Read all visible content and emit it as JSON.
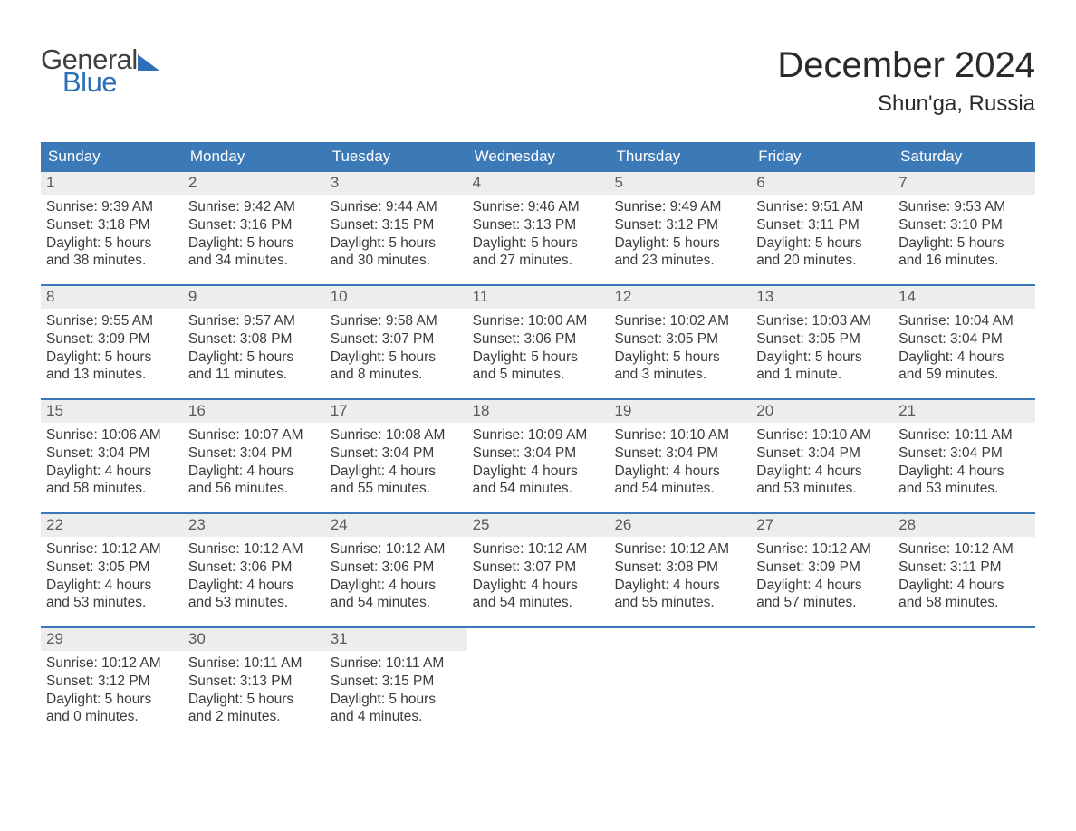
{
  "logo": {
    "word1": "General",
    "word2": "Blue"
  },
  "title": {
    "month_year": "December 2024",
    "location": "Shun'ga, Russia"
  },
  "colors": {
    "header_bg": "#3b79b7",
    "header_text": "#ffffff",
    "daynum_bg": "#ededed",
    "daynum_text": "#5a5a5a",
    "body_text": "#3b3b3b",
    "logo_gray": "#404040",
    "logo_blue": "#2d6fb8",
    "week_border": "#3b79b7",
    "page_bg": "#ffffff"
  },
  "typography": {
    "month_year_fontsize": 40,
    "location_fontsize": 24,
    "day_header_fontsize": 17,
    "day_num_fontsize": 17,
    "body_fontsize": 15.5,
    "logo_fontsize": 31
  },
  "day_headers": [
    "Sunday",
    "Monday",
    "Tuesday",
    "Wednesday",
    "Thursday",
    "Friday",
    "Saturday"
  ],
  "labels": {
    "sunrise": "Sunrise: ",
    "sunset": "Sunset: ",
    "daylight": "Daylight: "
  },
  "weeks": [
    [
      {
        "day": "1",
        "sunrise": "9:39 AM",
        "sunset": "3:18 PM",
        "daylight": "5 hours and 38 minutes."
      },
      {
        "day": "2",
        "sunrise": "9:42 AM",
        "sunset": "3:16 PM",
        "daylight": "5 hours and 34 minutes."
      },
      {
        "day": "3",
        "sunrise": "9:44 AM",
        "sunset": "3:15 PM",
        "daylight": "5 hours and 30 minutes."
      },
      {
        "day": "4",
        "sunrise": "9:46 AM",
        "sunset": "3:13 PM",
        "daylight": "5 hours and 27 minutes."
      },
      {
        "day": "5",
        "sunrise": "9:49 AM",
        "sunset": "3:12 PM",
        "daylight": "5 hours and 23 minutes."
      },
      {
        "day": "6",
        "sunrise": "9:51 AM",
        "sunset": "3:11 PM",
        "daylight": "5 hours and 20 minutes."
      },
      {
        "day": "7",
        "sunrise": "9:53 AM",
        "sunset": "3:10 PM",
        "daylight": "5 hours and 16 minutes."
      }
    ],
    [
      {
        "day": "8",
        "sunrise": "9:55 AM",
        "sunset": "3:09 PM",
        "daylight": "5 hours and 13 minutes."
      },
      {
        "day": "9",
        "sunrise": "9:57 AM",
        "sunset": "3:08 PM",
        "daylight": "5 hours and 11 minutes."
      },
      {
        "day": "10",
        "sunrise": "9:58 AM",
        "sunset": "3:07 PM",
        "daylight": "5 hours and 8 minutes."
      },
      {
        "day": "11",
        "sunrise": "10:00 AM",
        "sunset": "3:06 PM",
        "daylight": "5 hours and 5 minutes."
      },
      {
        "day": "12",
        "sunrise": "10:02 AM",
        "sunset": "3:05 PM",
        "daylight": "5 hours and 3 minutes."
      },
      {
        "day": "13",
        "sunrise": "10:03 AM",
        "sunset": "3:05 PM",
        "daylight": "5 hours and 1 minute."
      },
      {
        "day": "14",
        "sunrise": "10:04 AM",
        "sunset": "3:04 PM",
        "daylight": "4 hours and 59 minutes."
      }
    ],
    [
      {
        "day": "15",
        "sunrise": "10:06 AM",
        "sunset": "3:04 PM",
        "daylight": "4 hours and 58 minutes."
      },
      {
        "day": "16",
        "sunrise": "10:07 AM",
        "sunset": "3:04 PM",
        "daylight": "4 hours and 56 minutes."
      },
      {
        "day": "17",
        "sunrise": "10:08 AM",
        "sunset": "3:04 PM",
        "daylight": "4 hours and 55 minutes."
      },
      {
        "day": "18",
        "sunrise": "10:09 AM",
        "sunset": "3:04 PM",
        "daylight": "4 hours and 54 minutes."
      },
      {
        "day": "19",
        "sunrise": "10:10 AM",
        "sunset": "3:04 PM",
        "daylight": "4 hours and 54 minutes."
      },
      {
        "day": "20",
        "sunrise": "10:10 AM",
        "sunset": "3:04 PM",
        "daylight": "4 hours and 53 minutes."
      },
      {
        "day": "21",
        "sunrise": "10:11 AM",
        "sunset": "3:04 PM",
        "daylight": "4 hours and 53 minutes."
      }
    ],
    [
      {
        "day": "22",
        "sunrise": "10:12 AM",
        "sunset": "3:05 PM",
        "daylight": "4 hours and 53 minutes."
      },
      {
        "day": "23",
        "sunrise": "10:12 AM",
        "sunset": "3:06 PM",
        "daylight": "4 hours and 53 minutes."
      },
      {
        "day": "24",
        "sunrise": "10:12 AM",
        "sunset": "3:06 PM",
        "daylight": "4 hours and 54 minutes."
      },
      {
        "day": "25",
        "sunrise": "10:12 AM",
        "sunset": "3:07 PM",
        "daylight": "4 hours and 54 minutes."
      },
      {
        "day": "26",
        "sunrise": "10:12 AM",
        "sunset": "3:08 PM",
        "daylight": "4 hours and 55 minutes."
      },
      {
        "day": "27",
        "sunrise": "10:12 AM",
        "sunset": "3:09 PM",
        "daylight": "4 hours and 57 minutes."
      },
      {
        "day": "28",
        "sunrise": "10:12 AM",
        "sunset": "3:11 PM",
        "daylight": "4 hours and 58 minutes."
      }
    ],
    [
      {
        "day": "29",
        "sunrise": "10:12 AM",
        "sunset": "3:12 PM",
        "daylight": "5 hours and 0 minutes."
      },
      {
        "day": "30",
        "sunrise": "10:11 AM",
        "sunset": "3:13 PM",
        "daylight": "5 hours and 2 minutes."
      },
      {
        "day": "31",
        "sunrise": "10:11 AM",
        "sunset": "3:15 PM",
        "daylight": "5 hours and 4 minutes."
      },
      null,
      null,
      null,
      null
    ]
  ]
}
